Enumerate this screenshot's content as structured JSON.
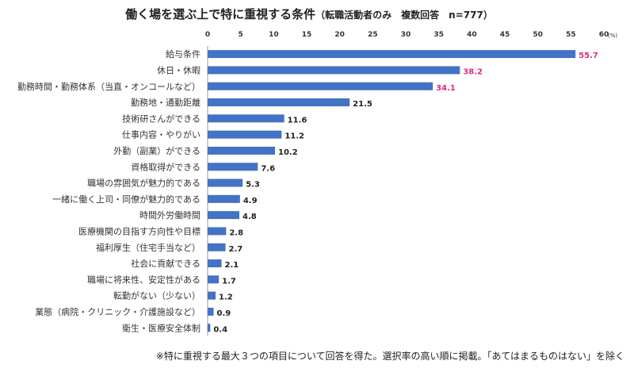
{
  "chart_data": {
    "type": "bar",
    "orientation": "horizontal",
    "title": "働く場を選ぶ上で特に重視する条件",
    "subtitle": "（転職活動者のみ　複数回答　n=777）",
    "unit_label": "(%)",
    "xlim": [
      0,
      60
    ],
    "ticks": [
      "0",
      "5",
      "10",
      "15",
      "20",
      "25",
      "30",
      "35",
      "40",
      "45",
      "50",
      "55",
      "60"
    ],
    "categories": [
      "給与条件",
      "休日・休暇",
      "勤務時間・勤務体系（当直・オンコールなど）",
      "勤務地・通勤距離",
      "技術研さんができる",
      "仕事内容・やりがい",
      "外勤（副業）ができる",
      "資格取得ができる",
      "職場の雰囲気が魅力的である",
      "一緒に働く上司・同僚が魅力的である",
      "時間外労働時間",
      "医療機関の目指す方向性や目標",
      "福利厚生（住宅手当など）",
      "社会に貢献できる",
      "職場に将来性、安定性がある",
      "転勤がない（少ない）",
      "業態（病院・クリニック・介護施設など）",
      "衛生・医療安全体制"
    ],
    "values": [
      55.7,
      38.2,
      34.1,
      21.5,
      11.6,
      11.2,
      10.2,
      7.6,
      5.3,
      4.9,
      4.8,
      2.8,
      2.7,
      2.1,
      1.7,
      1.2,
      0.9,
      0.4
    ],
    "value_labels": [
      "55.7",
      "38.2",
      "34.1",
      "21.5",
      "11.6",
      "11.2",
      "10.2",
      "7.6",
      "5.3",
      "4.9",
      "4.8",
      "2.8",
      "2.7",
      "2.1",
      "1.7",
      "1.2",
      "0.9",
      "0.4"
    ],
    "highlight_top_n": 3,
    "colors": {
      "bar": "#4472c4",
      "highlight_label": "#e6287a",
      "label": "#222222",
      "axis": "#999999"
    }
  },
  "footnote": "※特に重視する最大３つの項目について回答を得た。選択率の高い順に掲載。「あてはまるものはない」を除く"
}
